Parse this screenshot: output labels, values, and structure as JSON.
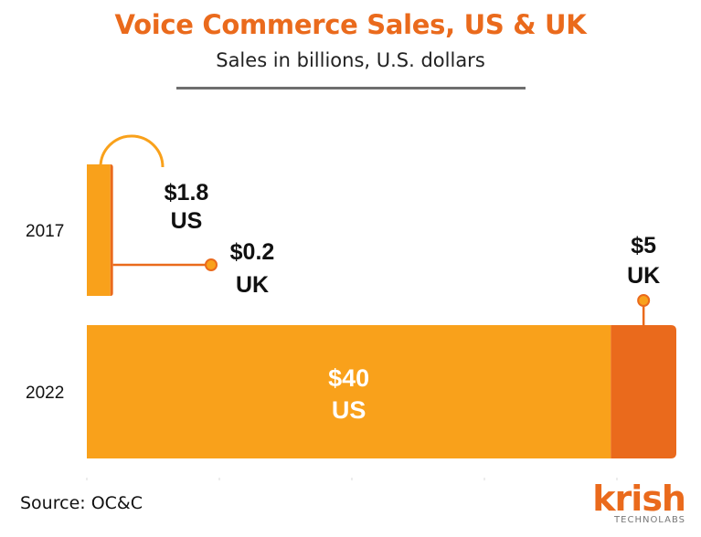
{
  "header": {
    "title": "Voice Commerce Sales, US & UK",
    "subtitle": "Sales in billions, U.S. dollars"
  },
  "footer": {
    "source": "Source: OC&C"
  },
  "logo": {
    "word": "krish",
    "sub": "TECHNOLABS"
  },
  "colors": {
    "us": "#f9a11b",
    "uk": "#ea6a1c",
    "title": "#ea6a1c"
  },
  "chart_data": {
    "type": "bar",
    "orientation": "horizontal",
    "stacked": true,
    "title": "Voice Commerce Sales, US & UK",
    "subtitle": "Sales in billions, U.S. dollars",
    "categories": [
      "2017",
      "2022"
    ],
    "series": [
      {
        "name": "US",
        "values": [
          1.8,
          40
        ],
        "labels": [
          "$1.8",
          "$40"
        ]
      },
      {
        "name": "UK",
        "values": [
          0.2,
          5
        ],
        "labels": [
          "$0.2",
          "$5"
        ]
      }
    ],
    "xlim": [
      0,
      45
    ],
    "grid": false,
    "legend": "none"
  }
}
